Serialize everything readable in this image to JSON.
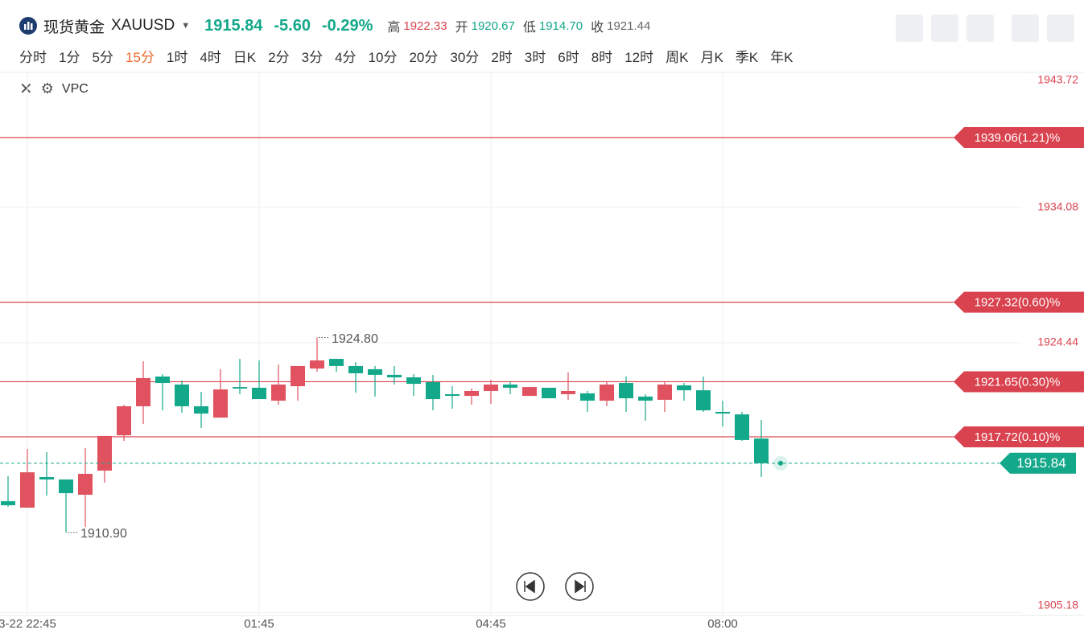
{
  "header": {
    "name": "现货黄金",
    "symbol": "XAUUSD",
    "price": "1915.84",
    "change": "-5.60",
    "change_pct": "-0.29%",
    "stats": [
      {
        "label": "高",
        "value": "1922.33"
      },
      {
        "label": "开",
        "value": "1920.67"
      },
      {
        "label": "低",
        "value": "1914.70"
      },
      {
        "label": "收",
        "value": "1921.44"
      }
    ]
  },
  "periods": [
    "分时",
    "1分",
    "5分",
    "15分",
    "1时",
    "4时",
    "日K",
    "2分",
    "3分",
    "4分",
    "10分",
    "20分",
    "30分",
    "2时",
    "3时",
    "6时",
    "8时",
    "12时",
    "周K",
    "月K",
    "季K",
    "年K"
  ],
  "active_period": "15分",
  "indicator": "VPC",
  "chart_data": {
    "type": "candlestick",
    "categories": [
      null,
      "3-22 22:45",
      null,
      null,
      null,
      null,
      null,
      null,
      null,
      null,
      null,
      null,
      null,
      "01:45",
      null,
      null,
      null,
      null,
      null,
      null,
      null,
      null,
      null,
      null,
      null,
      "04:45",
      null,
      null,
      null,
      null,
      null,
      null,
      null,
      null,
      null,
      null,
      null,
      "08:00",
      null,
      null
    ],
    "series": [
      {
        "up_color": "#e0525f",
        "down_color": "#14a88a",
        "open": [
          1913.13,
          1912.67,
          1914.85,
          1914.68,
          1913.59,
          1915.31,
          1917.83,
          1919.9,
          1922.02,
          1921.45,
          1919.9,
          1919.09,
          1921.27,
          1921.22,
          1920.3,
          1921.33,
          1922.59,
          1923.28,
          1922.77,
          1922.54,
          1922.14,
          1921.96,
          1921.62,
          1920.76,
          1920.64,
          1920.99,
          1921.45,
          1920.64,
          1921.22,
          1920.76,
          1920.82,
          1920.3,
          1921.56,
          1920.59,
          1920.36,
          1921.39,
          1921.04,
          1919.5,
          1919.32,
          1917.6
        ],
        "high": [
          1914.91,
          1916.86,
          1916.63,
          1914.68,
          1916.91,
          1917.78,
          1920.01,
          1923.11,
          1922.19,
          1921.73,
          1920.93,
          1922.54,
          1923.28,
          1923.17,
          1922.88,
          1922.77,
          1924.8,
          1923.28,
          1923.05,
          1922.77,
          1922.77,
          1922.19,
          1922.14,
          1921.33,
          1921.16,
          1921.79,
          1921.68,
          1921.27,
          1921.22,
          1922.31,
          1920.99,
          1921.62,
          1922.02,
          1920.76,
          1921.62,
          1921.56,
          1922.02,
          1920.3,
          1919.5,
          1918.92
        ],
        "low": [
          1912.73,
          1912.67,
          1913.53,
          1910.9,
          1911.29,
          1914.45,
          1917.43,
          1918.64,
          1919.61,
          1919.44,
          1918.35,
          1919.09,
          1920.76,
          1920.41,
          1920.01,
          1920.3,
          1922.36,
          1922.36,
          1920.87,
          1920.59,
          1921.45,
          1920.64,
          1919.61,
          1919.73,
          1920.01,
          1920.07,
          1920.76,
          1920.64,
          1920.47,
          1920.36,
          1919.5,
          1919.9,
          1919.5,
          1918.87,
          1919.5,
          1920.3,
          1919.5,
          1918.46,
          1917.43,
          1914.85
        ],
        "close": [
          1912.84,
          1915.19,
          1914.68,
          1913.7,
          1915.08,
          1917.78,
          1919.9,
          1921.91,
          1921.56,
          1919.9,
          1919.38,
          1921.1,
          1921.16,
          1920.41,
          1921.45,
          1922.77,
          1923.17,
          1922.77,
          1922.25,
          1922.14,
          1921.96,
          1921.5,
          1920.41,
          1920.64,
          1920.99,
          1921.45,
          1921.22,
          1921.27,
          1920.47,
          1920.99,
          1920.3,
          1921.45,
          1920.47,
          1920.3,
          1921.45,
          1921.04,
          1919.61,
          1919.38,
          1917.49,
          1915.84
        ]
      }
    ],
    "ylim": [
      1905.18,
      1943.72
    ],
    "yticks": [
      1943.72,
      1934.08,
      1924.44,
      1905.18
    ],
    "grid": true,
    "levels": [
      {
        "value": 1939.06,
        "label": "1939.06(1.21)%"
      },
      {
        "value": 1927.32,
        "label": "1927.32(0.60)%"
      },
      {
        "value": 1921.65,
        "label": "1921.65(0.30)%"
      },
      {
        "value": 1917.72,
        "label": "1917.72(0.10)%"
      }
    ],
    "level_color": "#d9434f",
    "annotations": [
      {
        "value": 1924.8,
        "label": "1924.80"
      },
      {
        "value": 1910.9,
        "label": "1910.90"
      }
    ]
  }
}
